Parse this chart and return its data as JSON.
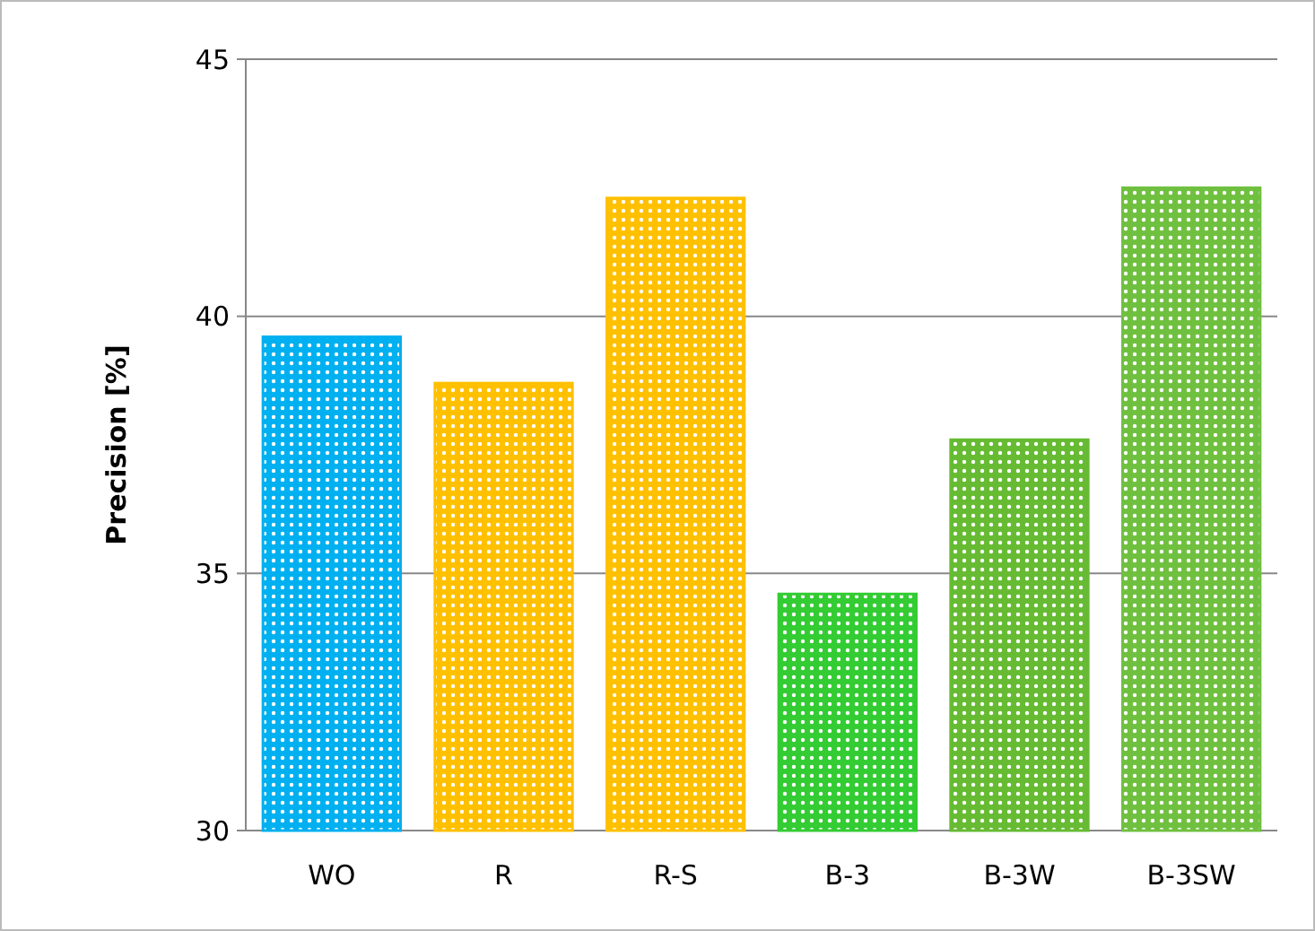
{
  "chart_data": {
    "type": "bar",
    "ylabel": "Precision [%]",
    "categories": [
      "WO",
      "R",
      "R-S",
      "B-3",
      "B-3W",
      "B-3SW"
    ],
    "values": [
      39.6,
      38.7,
      42.3,
      34.6,
      37.6,
      42.5
    ],
    "colors": [
      "#00b0f0",
      "#ffc000",
      "#ffc000",
      "#33cc33",
      "#66bb33",
      "#70c040"
    ],
    "ylim": [
      30,
      45
    ],
    "yticks": [
      30,
      35,
      40,
      45
    ],
    "grid": "y"
  }
}
